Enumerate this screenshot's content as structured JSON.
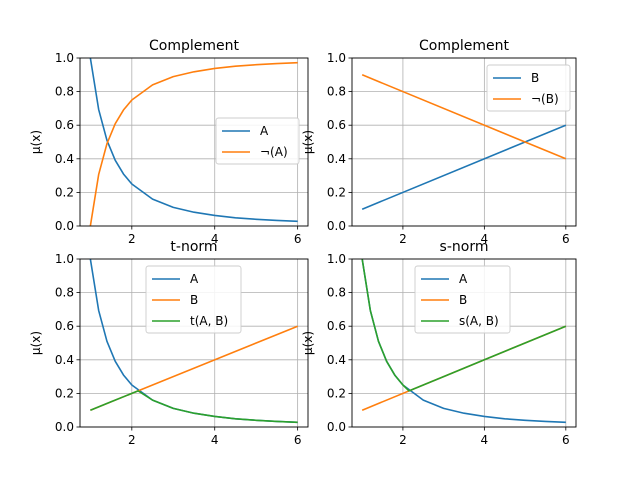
{
  "chart_data": [
    {
      "type": "line",
      "title": "Complement",
      "xlabel": "",
      "ylabel": "μ(x)",
      "xlim": [
        0.75,
        6.25
      ],
      "ylim": [
        0,
        1
      ],
      "xticks": [
        2,
        4,
        6
      ],
      "yticks": [
        0.0,
        0.2,
        0.4,
        0.6,
        0.8,
        1.0
      ],
      "grid": true,
      "legend": "center-right",
      "series": [
        {
          "name": "A",
          "color": "#1f77b4",
          "x": [
            1,
            1.2,
            1.4,
            1.6,
            1.8,
            2,
            2.5,
            3,
            3.5,
            4,
            4.5,
            5,
            5.5,
            6
          ],
          "y": [
            1.0,
            0.694,
            0.51,
            0.391,
            0.309,
            0.25,
            0.16,
            0.111,
            0.082,
            0.063,
            0.049,
            0.04,
            0.033,
            0.028
          ]
        },
        {
          "name": "¬(A)",
          "color": "#ff7f0e",
          "x": [
            1,
            1.2,
            1.4,
            1.6,
            1.8,
            2,
            2.5,
            3,
            3.5,
            4,
            4.5,
            5,
            5.5,
            6
          ],
          "y": [
            0.0,
            0.306,
            0.49,
            0.609,
            0.691,
            0.75,
            0.84,
            0.889,
            0.918,
            0.938,
            0.951,
            0.96,
            0.967,
            0.972
          ]
        }
      ]
    },
    {
      "type": "line",
      "title": "Complement",
      "xlabel": "",
      "ylabel": "μ(x)",
      "xlim": [
        0.75,
        6.25
      ],
      "ylim": [
        0,
        1
      ],
      "xticks": [
        2,
        4,
        6
      ],
      "yticks": [
        0.0,
        0.2,
        0.4,
        0.6,
        0.8,
        1.0
      ],
      "grid": true,
      "legend": "top-right",
      "series": [
        {
          "name": "B",
          "color": "#1f77b4",
          "x": [
            1,
            6
          ],
          "y": [
            0.1,
            0.6
          ]
        },
        {
          "name": "¬(B)",
          "color": "#ff7f0e",
          "x": [
            1,
            6
          ],
          "y": [
            0.9,
            0.4
          ]
        }
      ]
    },
    {
      "type": "line",
      "title": "t-norm",
      "xlabel": "",
      "ylabel": "μ(x)",
      "xlim": [
        0.75,
        6.25
      ],
      "ylim": [
        0,
        1
      ],
      "xticks": [
        2,
        4,
        6
      ],
      "yticks": [
        0.0,
        0.2,
        0.4,
        0.6,
        0.8,
        1.0
      ],
      "grid": true,
      "legend": "top-center",
      "series": [
        {
          "name": "A",
          "color": "#1f77b4",
          "x": [
            1,
            1.2,
            1.4,
            1.6,
            1.8,
            2,
            2.5,
            3,
            3.5,
            4,
            4.5,
            5,
            5.5,
            6
          ],
          "y": [
            1.0,
            0.694,
            0.51,
            0.391,
            0.309,
            0.25,
            0.16,
            0.111,
            0.082,
            0.063,
            0.049,
            0.04,
            0.033,
            0.028
          ]
        },
        {
          "name": "B",
          "color": "#ff7f0e",
          "x": [
            1,
            6
          ],
          "y": [
            0.1,
            0.6
          ]
        },
        {
          "name": "t(A, B)",
          "color": "#2ca02c",
          "x": [
            1,
            1.5,
            2,
            2.15,
            2.5,
            3,
            3.5,
            4,
            4.5,
            5,
            5.5,
            6
          ],
          "y": [
            0.1,
            0.15,
            0.2,
            0.215,
            0.16,
            0.111,
            0.082,
            0.063,
            0.049,
            0.04,
            0.033,
            0.028
          ]
        }
      ]
    },
    {
      "type": "line",
      "title": "s-norm",
      "xlabel": "",
      "ylabel": "μ(x)",
      "xlim": [
        0.75,
        6.25
      ],
      "ylim": [
        0,
        1
      ],
      "xticks": [
        2,
        4,
        6
      ],
      "yticks": [
        0.0,
        0.2,
        0.4,
        0.6,
        0.8,
        1.0
      ],
      "grid": true,
      "legend": "top-center",
      "series": [
        {
          "name": "A",
          "color": "#1f77b4",
          "x": [
            1,
            1.2,
            1.4,
            1.6,
            1.8,
            2,
            2.5,
            3,
            3.5,
            4,
            4.5,
            5,
            5.5,
            6
          ],
          "y": [
            1.0,
            0.694,
            0.51,
            0.391,
            0.309,
            0.25,
            0.16,
            0.111,
            0.082,
            0.063,
            0.049,
            0.04,
            0.033,
            0.028
          ]
        },
        {
          "name": "B",
          "color": "#ff7f0e",
          "x": [
            1,
            6
          ],
          "y": [
            0.1,
            0.6
          ]
        },
        {
          "name": "s(A, B)",
          "color": "#2ca02c",
          "x": [
            1,
            1.2,
            1.4,
            1.6,
            1.8,
            2,
            2.15,
            2.5,
            3,
            4,
            5,
            6
          ],
          "y": [
            1.0,
            0.694,
            0.51,
            0.391,
            0.309,
            0.25,
            0.215,
            0.25,
            0.3,
            0.4,
            0.5,
            0.6
          ]
        }
      ]
    }
  ]
}
